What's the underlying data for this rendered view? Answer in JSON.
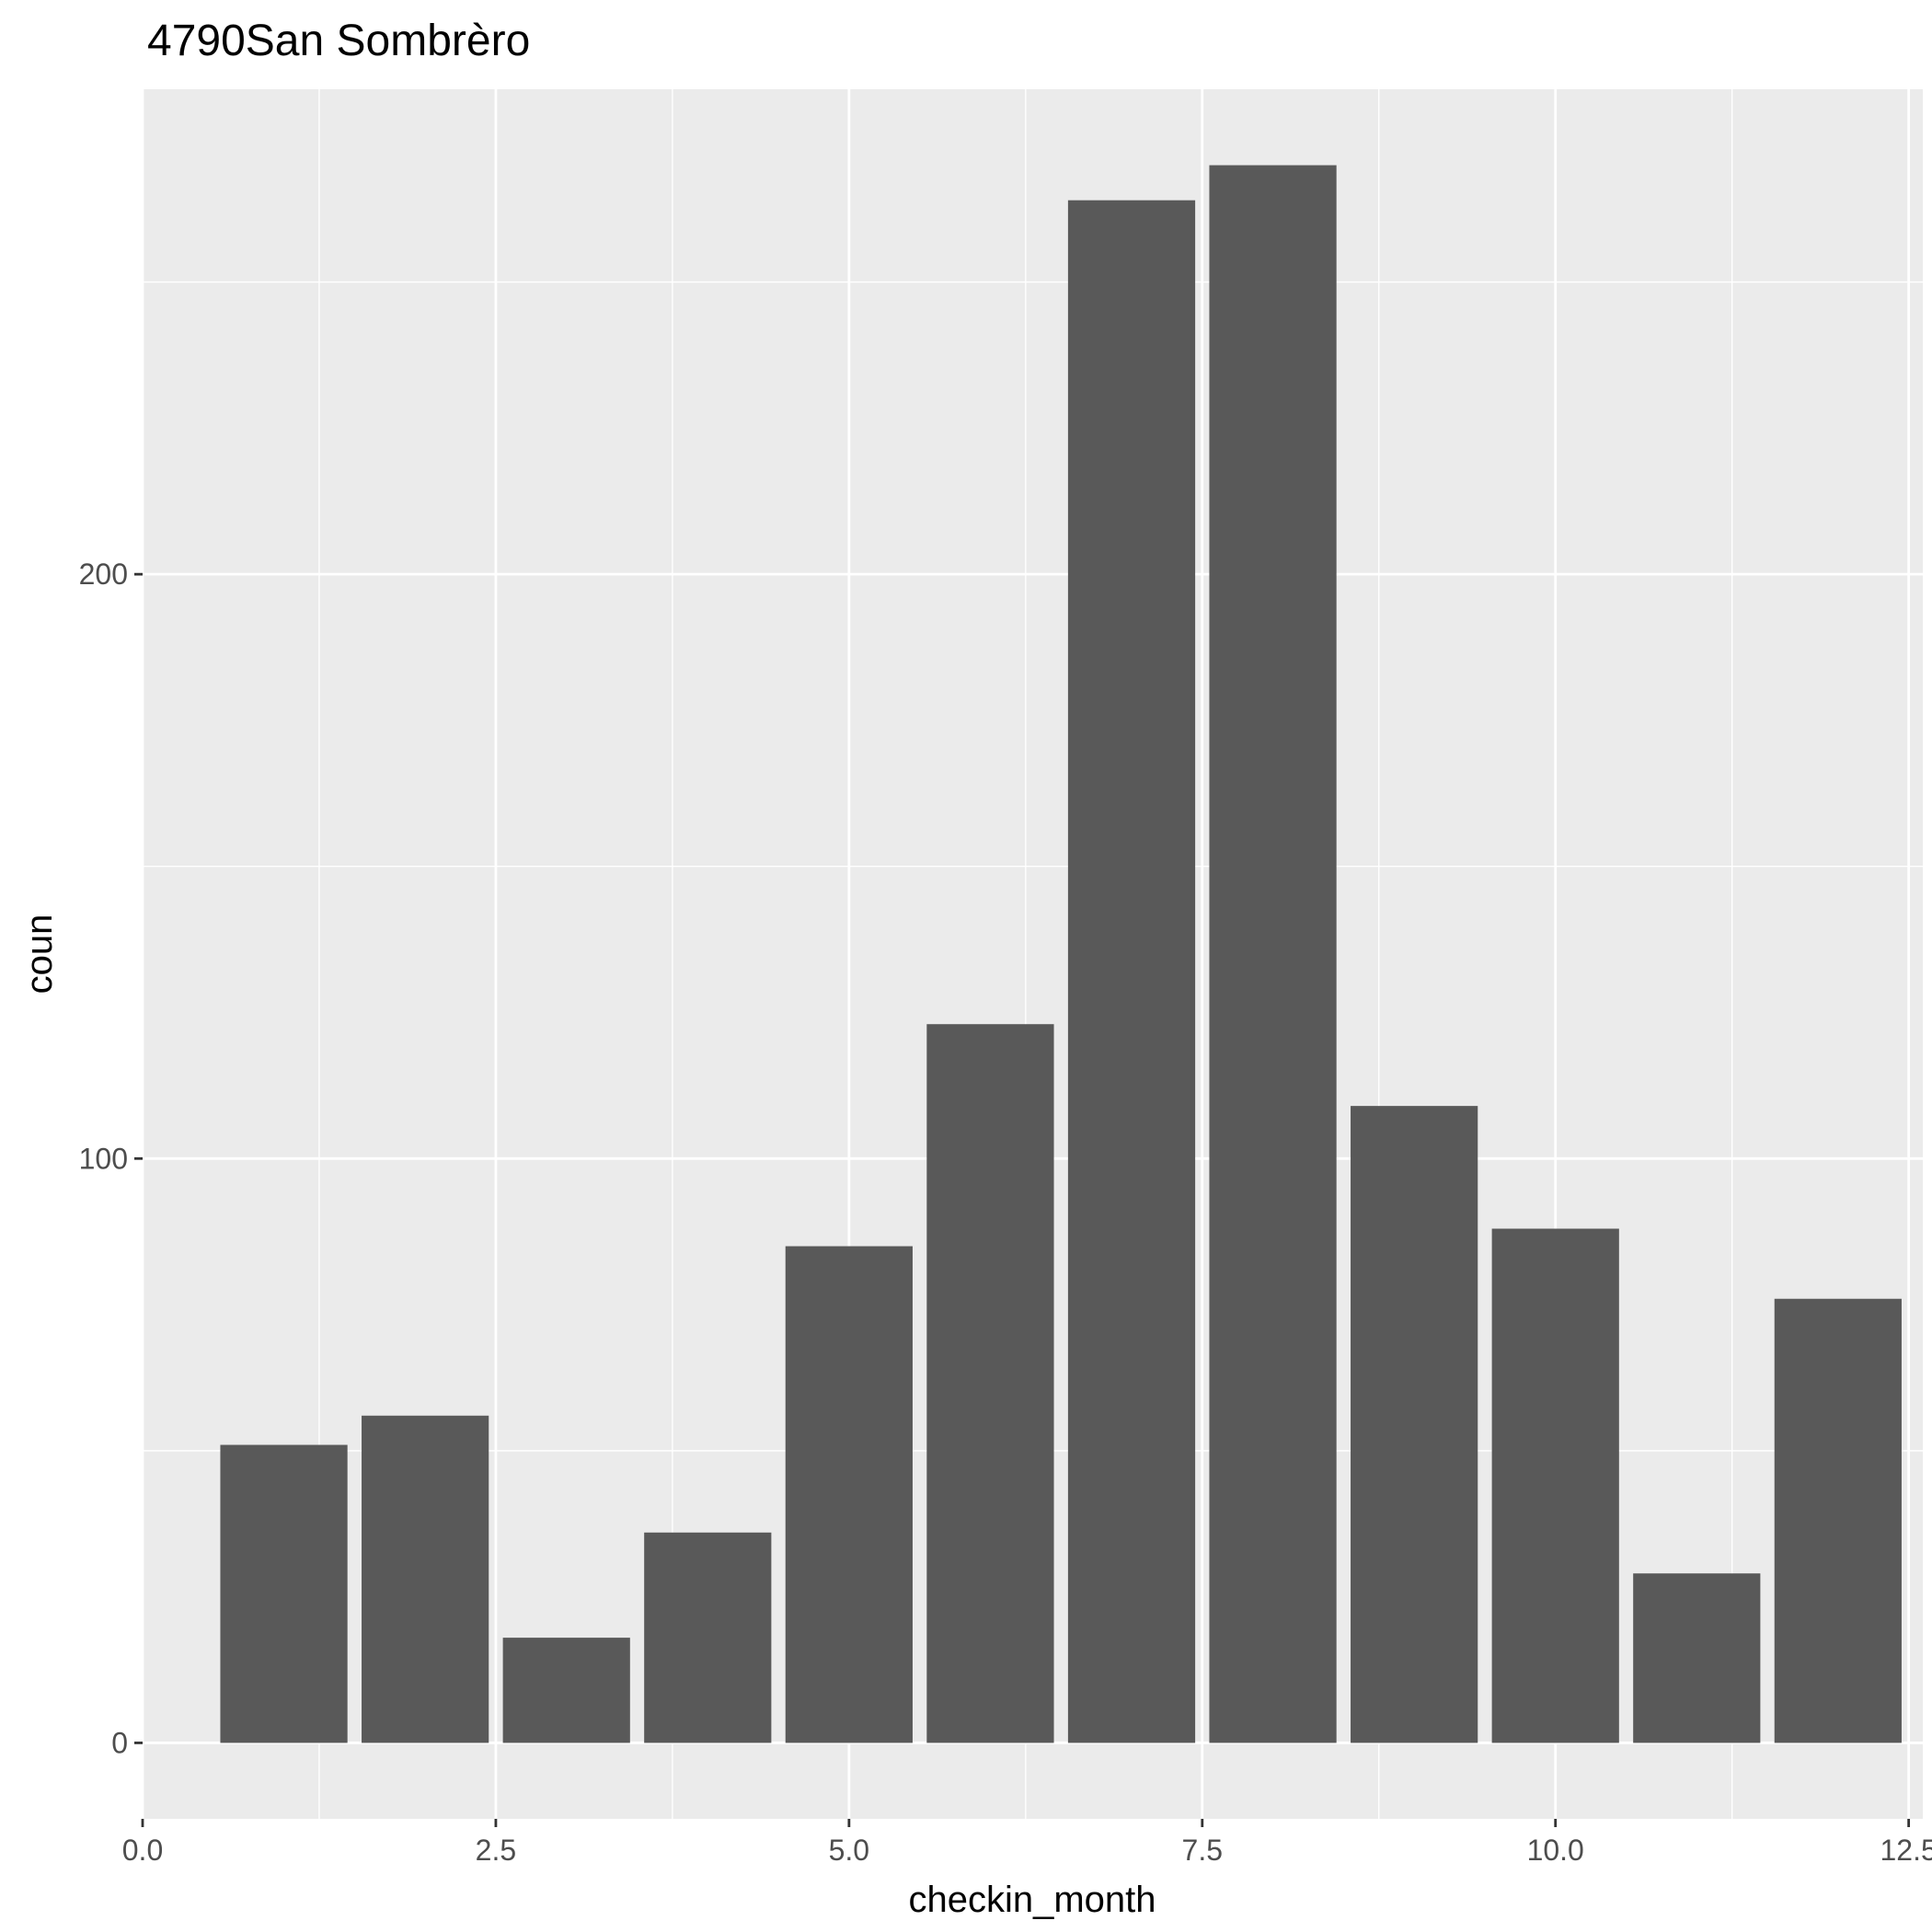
{
  "chart_data": {
    "type": "bar",
    "title": "4790San Sombrèro",
    "xlabel": "checkin_month",
    "ylabel": "coun",
    "x": [
      1,
      2,
      3,
      4,
      5,
      6,
      7,
      8,
      9,
      10,
      11,
      12
    ],
    "values": [
      51,
      56,
      18,
      36,
      85,
      123,
      264,
      270,
      109,
      88,
      29,
      76
    ],
    "xlim": [
      0,
      12.6
    ],
    "ylim": [
      -13,
      283
    ],
    "xticks": [
      0,
      2.5,
      5,
      7.5,
      10,
      12.5
    ],
    "xtick_labels": [
      "0.0",
      "2.5",
      "5.0",
      "7.5",
      "10.0",
      "12.5"
    ],
    "yticks": [
      0,
      100,
      200
    ],
    "ytick_labels": [
      "0",
      "100",
      "200"
    ],
    "grid": true,
    "legend": "none",
    "colors": {
      "bar": "#595959",
      "panel": "#ebebeb",
      "grid": "#ffffff"
    }
  }
}
